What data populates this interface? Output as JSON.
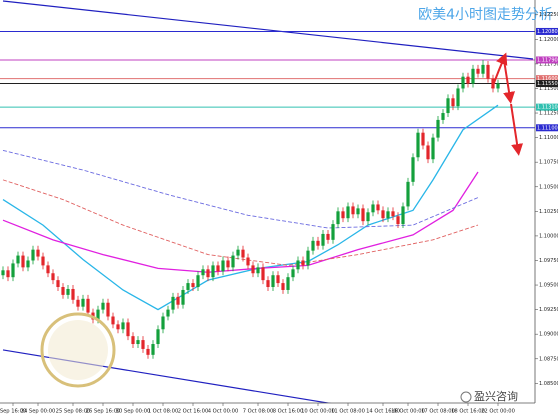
{
  "watermark": "盈兴咨询",
  "chart_data": {
    "type": "candlestick",
    "title": "欧美4小时图走势分析",
    "x": [
      null,
      null,
      "Sep 16:00",
      null,
      null,
      null,
      null,
      "24 Sep 00:00",
      null,
      null,
      null,
      null,
      null,
      null,
      "25 Sep 08:00",
      null,
      null,
      null,
      null,
      null,
      "26 Sep 16:00",
      null,
      null,
      null,
      null,
      null,
      "30 Sep 00:00",
      null,
      null,
      null,
      null,
      null,
      "1 Oct 08:00",
      null,
      null,
      null,
      null,
      null,
      "2 Oct 16:00",
      null,
      null,
      null,
      null,
      null,
      "4 Oct 00:00",
      null,
      null,
      null,
      null,
      null,
      null,
      "7 Oct 08:00",
      null,
      null,
      null,
      null,
      null,
      "8 Oct 16:00",
      null,
      null,
      null,
      null,
      null,
      "10 Oct 00:00",
      null,
      null,
      null,
      null,
      null,
      "11 Oct 08:00",
      null,
      null,
      null,
      null,
      null,
      null,
      "14 Oct 16:00",
      null,
      null,
      null,
      null,
      "16 Oct 00:00",
      null,
      null,
      null,
      null,
      null,
      "17 Oct 08:00",
      null,
      null,
      null,
      null,
      null,
      "18 Oct 16:00",
      null,
      null,
      null,
      null,
      null,
      "22 Oct 00:00"
    ],
    "open": [
      1.096,
      1.0965,
      1.0958,
      1.0972,
      1.098,
      1.0968,
      1.0975,
      1.0986,
      1.0979,
      1.097,
      1.0962,
      1.0955,
      1.0948,
      1.094,
      1.0946,
      1.0935,
      1.0928,
      1.0936,
      1.0922,
      1.0915,
      1.0925,
      1.0932,
      1.0918,
      1.091,
      1.0905,
      1.0912,
      1.0898,
      1.089,
      1.0894,
      1.0885,
      1.0879,
      1.089,
      1.0905,
      1.0918,
      1.0925,
      1.0938,
      1.093,
      1.0945,
      1.0952,
      1.0948,
      1.096,
      1.0966,
      1.0958,
      1.097,
      1.0964,
      1.0975,
      1.0968,
      1.098,
      1.0986,
      1.0978,
      1.097,
      1.0962,
      1.0968,
      1.0955,
      1.0948,
      1.096,
      1.0952,
      1.0945,
      1.0958,
      1.0966,
      1.0975,
      1.097,
      1.0985,
      1.0995,
      1.099,
      1.1002,
      1.0996,
      1.1012,
      1.1025,
      1.1018,
      1.103,
      1.1022,
      1.1028,
      1.1015,
      1.1024,
      1.1032,
      1.1026,
      1.1018,
      1.1025,
      1.102,
      1.1012,
      1.103,
      1.1055,
      1.108,
      1.1105,
      1.1092,
      1.1078,
      1.11,
      1.1118,
      1.1125,
      1.114,
      1.1132,
      1.115,
      1.1162,
      1.1155,
      1.117,
      1.1165,
      1.1174,
      1.116,
      1.115
    ],
    "high": [
      1.0969,
      1.0969,
      1.0976,
      1.0984,
      1.0984,
      1.0979,
      1.099,
      1.099,
      1.0983,
      1.0974,
      1.0966,
      1.0959,
      1.0952,
      1.095,
      1.095,
      1.0939,
      1.094,
      1.094,
      1.0926,
      1.0929,
      1.0936,
      1.0936,
      1.0922,
      1.0914,
      1.0916,
      1.0916,
      1.0902,
      1.0898,
      1.0898,
      1.0889,
      1.0894,
      1.0909,
      1.0922,
      1.0929,
      1.0942,
      1.0942,
      1.0949,
      1.0956,
      1.0956,
      1.0964,
      1.097,
      1.097,
      1.0974,
      1.0974,
      1.0979,
      1.0979,
      1.0984,
      1.099,
      1.099,
      1.0982,
      1.0974,
      1.0972,
      1.0972,
      1.0959,
      1.0964,
      1.0964,
      1.0956,
      1.0962,
      1.097,
      1.0979,
      1.0979,
      1.0989,
      1.0999,
      1.0999,
      1.1006,
      1.1006,
      1.1016,
      1.1029,
      1.1029,
      1.1034,
      1.1034,
      1.1032,
      1.1032,
      1.1028,
      1.1036,
      1.1036,
      1.103,
      1.1029,
      1.1029,
      1.1024,
      1.1034,
      1.1059,
      1.1084,
      1.1109,
      1.1109,
      1.1096,
      1.1104,
      1.1122,
      1.1129,
      1.1144,
      1.1144,
      1.1154,
      1.1166,
      1.1166,
      1.1174,
      1.1174,
      1.1179,
      1.1178,
      1.1164,
      1.1159
    ],
    "low": [
      1.0956,
      1.0954,
      1.0954,
      1.0968,
      1.0964,
      1.0964,
      1.0971,
      1.0975,
      1.0966,
      1.0958,
      1.0951,
      1.0944,
      1.0936,
      1.0936,
      1.0931,
      1.0924,
      1.0924,
      1.0918,
      1.0911,
      1.0911,
      1.0921,
      1.0914,
      1.0906,
      1.0901,
      1.0901,
      1.0894,
      1.0886,
      1.0886,
      1.0881,
      1.0875,
      1.0875,
      1.0886,
      1.0901,
      1.0914,
      1.0921,
      1.0926,
      1.0926,
      1.0941,
      1.0944,
      1.0944,
      1.0956,
      1.0954,
      1.0954,
      1.096,
      1.096,
      1.0964,
      1.0964,
      1.0976,
      1.0974,
      1.0966,
      1.0958,
      1.0958,
      1.0951,
      1.0944,
      1.0944,
      1.0948,
      1.0941,
      1.0941,
      1.0954,
      1.0962,
      1.0966,
      1.0966,
      1.0981,
      1.0986,
      1.0986,
      1.0992,
      1.0992,
      1.1008,
      1.1014,
      1.1014,
      1.1018,
      1.1018,
      1.1011,
      1.1011,
      1.102,
      1.1022,
      1.1014,
      1.1014,
      1.1016,
      1.1008,
      1.1008,
      1.1026,
      1.1051,
      1.1076,
      1.1088,
      1.1074,
      1.1074,
      1.1096,
      1.1114,
      1.1121,
      1.1128,
      1.1128,
      1.1146,
      1.1151,
      1.1151,
      1.1161,
      1.1161,
      1.1156,
      1.1146,
      1.1146
    ],
    "close": [
      1.0965,
      1.0958,
      1.0972,
      1.098,
      1.0968,
      1.0975,
      1.0986,
      1.0979,
      1.097,
      1.0962,
      1.0955,
      1.0948,
      1.094,
      1.0946,
      1.0935,
      1.0928,
      1.0936,
      1.0922,
      1.0915,
      1.0925,
      1.0932,
      1.0918,
      1.091,
      1.0905,
      1.0912,
      1.0898,
      1.089,
      1.0894,
      1.0885,
      1.0879,
      1.089,
      1.0905,
      1.0918,
      1.0925,
      1.0938,
      1.093,
      1.0945,
      1.0952,
      1.0948,
      1.096,
      1.0966,
      1.0958,
      1.097,
      1.0964,
      1.0975,
      1.0968,
      1.098,
      1.0986,
      1.0978,
      1.097,
      1.0962,
      1.0968,
      1.0955,
      1.0948,
      1.096,
      1.0952,
      1.0945,
      1.0958,
      1.0966,
      1.0975,
      1.097,
      1.0985,
      1.0995,
      1.099,
      1.1002,
      1.0996,
      1.1012,
      1.1025,
      1.1018,
      1.103,
      1.1022,
      1.1028,
      1.1015,
      1.1024,
      1.1032,
      1.1026,
      1.1018,
      1.1025,
      1.102,
      1.1012,
      1.103,
      1.1055,
      1.108,
      1.1105,
      1.1092,
      1.1078,
      1.11,
      1.1118,
      1.1125,
      1.114,
      1.1132,
      1.115,
      1.1162,
      1.1155,
      1.117,
      1.1165,
      1.1174,
      1.116,
      1.115,
      1.1155
    ],
    "up_color": "#14a03c",
    "down_color": "#e3262b",
    "ylim": [
      1.083,
      1.124
    ],
    "yticks": [
      {
        "value": 1.085,
        "label": "1.08500"
      },
      {
        "value": 1.0875,
        "label": "1.08750"
      },
      {
        "value": 1.09,
        "label": "1.09000"
      },
      {
        "value": 1.0925,
        "label": "1.09250"
      },
      {
        "value": 1.095,
        "label": "1.09500"
      },
      {
        "value": 1.0975,
        "label": "1.09750"
      },
      {
        "value": 1.1,
        "label": "1.10000"
      },
      {
        "value": 1.1025,
        "label": "1.10250"
      },
      {
        "value": 1.105,
        "label": "1.10500"
      },
      {
        "value": 1.1075,
        "label": "1.10750"
      },
      {
        "value": 1.11,
        "label": "1.11000"
      },
      {
        "value": 1.1125,
        "label": "1.11250"
      },
      {
        "value": 1.115,
        "label": "1.11500"
      },
      {
        "value": 1.1175,
        "label": "1.11750"
      },
      {
        "value": 1.12,
        "label": "1.12000"
      },
      {
        "value": 1.1225,
        "label": "1.12250"
      }
    ],
    "levels": [
      {
        "value": 1.1208,
        "label": "1.12080",
        "color": "#2b2bd0"
      },
      {
        "value": 1.1179,
        "label": "1.11790",
        "color": "#c040c0"
      },
      {
        "value": 1.116,
        "label": "1.11600",
        "color": "#e07070"
      },
      {
        "value": 1.1155,
        "label": "1.11550",
        "color": "#202020"
      },
      {
        "value": 1.1131,
        "label": "1.11310",
        "color": "#30c0b0"
      },
      {
        "value": 1.111,
        "label": "1.11100",
        "color": "#2b2bd0"
      }
    ],
    "overlays": [
      {
        "color": "#29b6e8",
        "dashed": false,
        "x": [
          0,
          8,
          16,
          24,
          31,
          36,
          41,
          51,
          61,
          67,
          73,
          82,
          86,
          92,
          99
        ],
        "values": [
          1.1037,
          1.1011,
          1.0976,
          1.0945,
          1.0925,
          1.094,
          1.0955,
          1.0967,
          1.0974,
          1.0991,
          1.1011,
          1.1026,
          1.1057,
          1.1108,
          1.1133
        ]
      },
      {
        "color": "#e020e0",
        "dashed": false,
        "x": [
          0,
          10,
          20,
          31,
          41,
          51,
          61,
          71,
          82,
          90,
          95
        ],
        "values": [
          1.1016,
          1.0996,
          1.0981,
          1.0967,
          1.0963,
          1.0967,
          1.097,
          1.0986,
          1.1001,
          1.1026,
          1.1065
        ]
      },
      {
        "color": "#e06060",
        "dashed": true,
        "x": [
          0,
          12,
          24,
          41,
          57,
          71,
          86,
          95
        ],
        "values": [
          1.1057,
          1.1037,
          1.1011,
          1.0981,
          1.097,
          1.0981,
          1.0996,
          1.1011
        ]
      },
      {
        "color": "#6a6ae0",
        "dashed": true,
        "x": [
          0,
          16,
          33,
          49,
          65,
          82,
          95
        ],
        "values": [
          1.1087,
          1.1067,
          1.1042,
          1.1021,
          1.1008,
          1.1011,
          1.1039
        ]
      }
    ],
    "trendlines": [
      {
        "color": "#2020c0",
        "x": [
          0,
          106
        ],
        "values": [
          1.1239,
          1.118
        ]
      },
      {
        "color": "#2020c0",
        "x": [
          0,
          83
        ],
        "values": [
          1.0884,
          1.0815
        ]
      }
    ]
  }
}
